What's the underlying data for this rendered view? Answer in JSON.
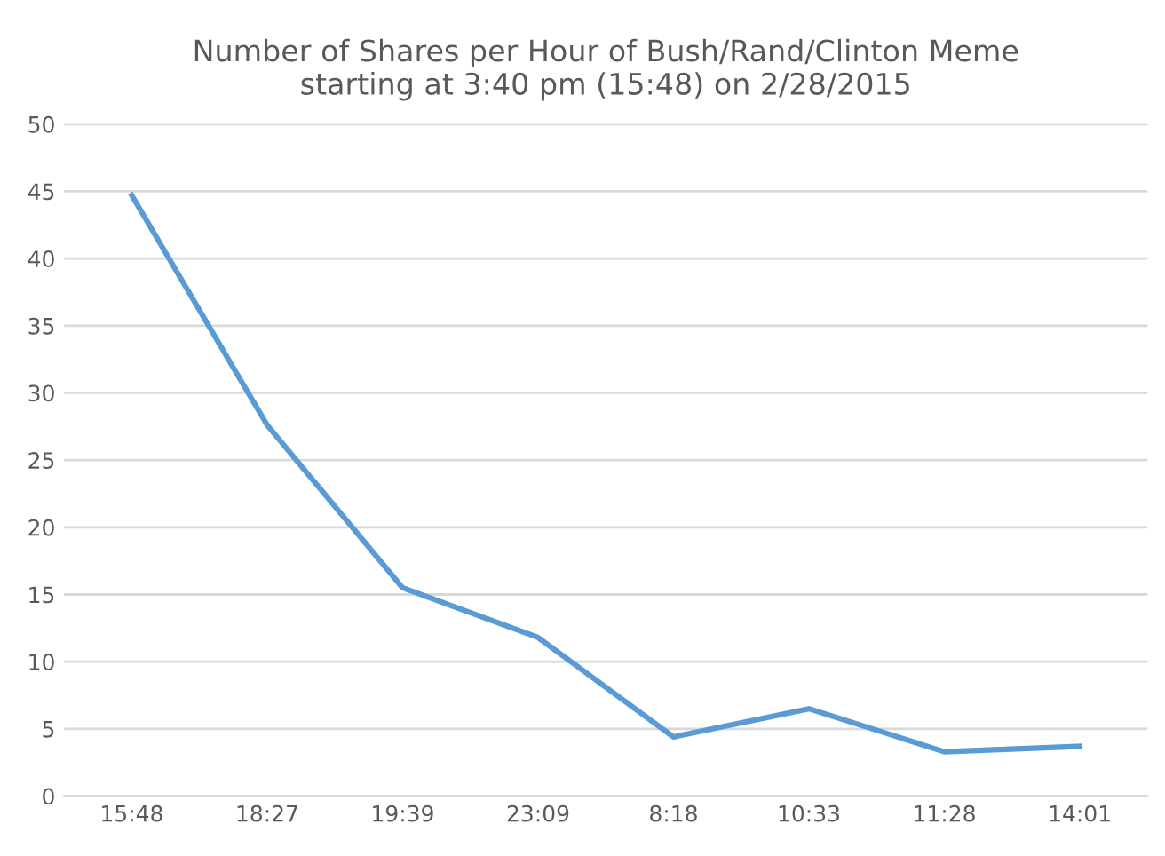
{
  "chart_data": {
    "type": "line",
    "title": "Number of Shares per Hour of Bush/Rand/Clinton Meme\nstarting at 3:40 pm (15:48) on 2/28/2015",
    "categories": [
      "15:48",
      "18:27",
      "19:39",
      "23:09",
      "8:18",
      "10:33",
      "11:28",
      "14:01"
    ],
    "series": [
      {
        "color": "#5b9bd5",
        "values": [
          44.7,
          27.6,
          15.5,
          11.8,
          4.4,
          6.5,
          3.3,
          3.7
        ]
      }
    ],
    "ylim": [
      0,
      50
    ],
    "yticks": [
      0,
      5,
      10,
      15,
      20,
      25,
      30,
      35,
      40,
      45,
      50
    ],
    "grid": "y",
    "marker": "none",
    "line_style": "solid"
  }
}
